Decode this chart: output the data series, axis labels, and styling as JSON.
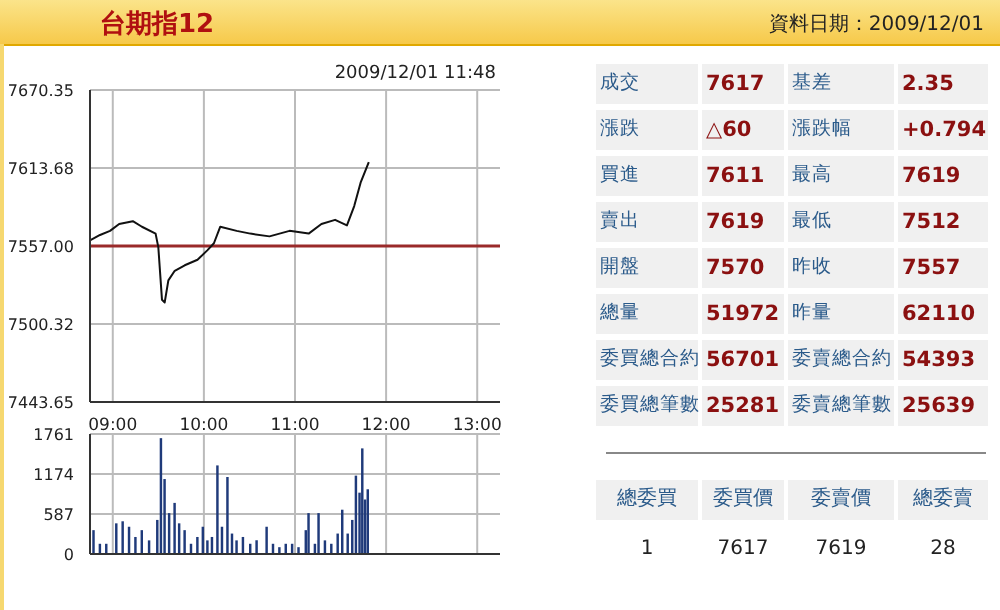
{
  "chart_data": [
    {
      "type": "line",
      "title": "台期指12",
      "annotations": [
        "2009/12/01 11:48"
      ],
      "x": [
        8.75,
        8.86,
        8.97,
        9.07,
        9.22,
        9.32,
        9.47,
        9.5,
        9.54,
        9.57,
        9.61,
        9.68,
        9.79,
        9.93,
        10.04,
        10.11,
        10.18,
        10.36,
        10.51,
        10.72,
        10.94,
        11.15,
        11.29,
        11.44,
        11.57,
        11.65,
        11.72,
        11.81
      ],
      "series": [
        {
          "color": "#111111",
          "values": [
            7561,
            7565,
            7568,
            7573,
            7575,
            7571,
            7566,
            7556,
            7518,
            7516,
            7532,
            7539,
            7543,
            7547,
            7554,
            7559,
            7571,
            7568,
            7566,
            7564,
            7568,
            7566,
            7573,
            7576,
            7572,
            7586,
            7603,
            7618
          ]
        }
      ],
      "xlim": [
        8.75,
        13.25
      ],
      "xticks": [
        {
          "value": 9,
          "label": "09:00"
        },
        {
          "value": 10,
          "label": "10:00"
        },
        {
          "value": 11,
          "label": "11:00"
        },
        {
          "value": 12,
          "label": "12:00"
        },
        {
          "value": 13,
          "label": "13:00"
        }
      ],
      "ylim": [
        7443.65,
        7670.35
      ],
      "yticks": [
        7443.65,
        7500.32,
        {
          "value": 7557,
          "label": "7557.00"
        },
        7613.68,
        7670.35
      ],
      "ref_lines": [
        {
          "axis": "y",
          "value": 7557,
          "color": "#9a2a2a"
        }
      ],
      "grid": true,
      "legend": false,
      "marker": "none"
    },
    {
      "type": "bar",
      "x": [
        8.79,
        8.86,
        8.93,
        9.04,
        9.11,
        9.18,
        9.25,
        9.32,
        9.4,
        9.49,
        9.53,
        9.57,
        9.62,
        9.68,
        9.73,
        9.79,
        9.86,
        9.93,
        9.99,
        10.04,
        10.09,
        10.15,
        10.2,
        10.26,
        10.31,
        10.36,
        10.43,
        10.51,
        10.58,
        10.69,
        10.76,
        10.83,
        10.9,
        10.97,
        11.04,
        11.12,
        11.15,
        11.22,
        11.26,
        11.33,
        11.4,
        11.47,
        11.52,
        11.58,
        11.63,
        11.67,
        11.71,
        11.74,
        11.77,
        11.8
      ],
      "series": [
        {
          "color": "#1f3a7a",
          "values": [
            350,
            150,
            150,
            450,
            480,
            400,
            250,
            350,
            200,
            500,
            1700,
            1100,
            600,
            750,
            450,
            350,
            150,
            250,
            400,
            200,
            250,
            1300,
            400,
            1130,
            300,
            200,
            250,
            150,
            200,
            400,
            150,
            100,
            150,
            150,
            100,
            350,
            600,
            150,
            600,
            200,
            150,
            300,
            650,
            300,
            500,
            1150,
            900,
            1550,
            800,
            950
          ]
        }
      ],
      "xlim": [
        8.75,
        13.25
      ],
      "xticks": [
        9,
        10,
        11,
        12,
        13
      ],
      "ylim": [
        0,
        1761
      ],
      "yticks": [
        0,
        587,
        1174,
        1761
      ],
      "tick_labels": "y",
      "grid": true,
      "legend": false
    },
    {
      "type": "other",
      "title": "資料日期：2009/12/01",
      "annotations": [
        "成交",
        "7617",
        "基差",
        "2.35",
        "漲跌",
        "△60",
        "漲跌幅",
        "+0.794",
        "買進",
        "7611",
        "最高",
        "7619",
        "賣出",
        "7619",
        "最低",
        "7512",
        "開盤",
        "7570",
        "昨收",
        "7557",
        "總量",
        "51972",
        "昨量",
        "62110",
        "委買總合約",
        "56701",
        "委賣總合約",
        "54393",
        "委買總筆數",
        "25281",
        "委賣總筆數",
        "25639",
        "總委買",
        "委買價",
        "委賣價",
        "總委賣",
        "1",
        "7617",
        "7619",
        "28"
      ]
    }
  ]
}
